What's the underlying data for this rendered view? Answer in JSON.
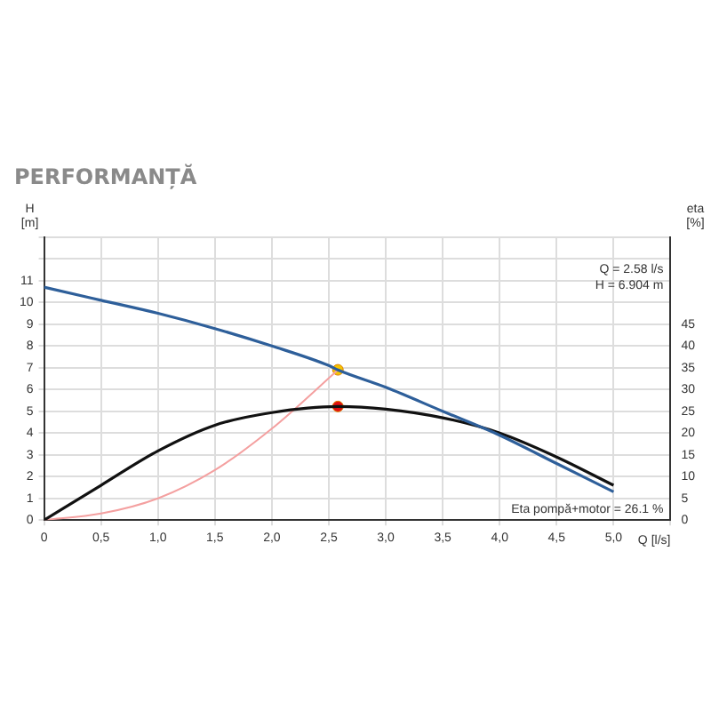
{
  "chart_data": {
    "type": "line",
    "title": "PERFORMANȚĂ",
    "xlabel": "Q [l/s]",
    "ylabel": "H [m]",
    "y2label": "eta [%]",
    "xlim": [
      0,
      5.5
    ],
    "xticks": [
      0,
      {
        "value": 0.5,
        "label": "0,5"
      },
      {
        "value": 1,
        "label": "1,0"
      },
      {
        "value": 1.5,
        "label": "1,5"
      },
      {
        "value": 2,
        "label": "2,0"
      },
      {
        "value": 2.5,
        "label": "2,5"
      },
      {
        "value": 3,
        "label": "3,0"
      },
      {
        "value": 3.5,
        "label": "3,5"
      },
      {
        "value": 4,
        "label": "4,0"
      },
      {
        "value": 4.5,
        "label": "4,5"
      },
      {
        "value": 5,
        "label": "5,0"
      },
      {
        "value": 5.5,
        "label": null
      }
    ],
    "ylim": [
      0,
      13
    ],
    "yticks": [
      0,
      1,
      2,
      3,
      4,
      5,
      6,
      7,
      8,
      9,
      10,
      11,
      {
        "value": 12,
        "label": null
      },
      {
        "value": 13,
        "label": null
      }
    ],
    "y2lim": [
      0,
      65
    ],
    "y2ticks": [
      0,
      5,
      10,
      15,
      20,
      25,
      30,
      35,
      40,
      45
    ],
    "grid": true,
    "series": [
      {
        "color": "#2e5f9a",
        "x": [
          0,
          0.5,
          1,
          1.5,
          2,
          2.5,
          2.58,
          3,
          3.5,
          4,
          4.5,
          5
        ],
        "values": [
          10.7,
          10.1,
          9.5,
          8.8,
          8.0,
          7.1,
          6.9,
          6.1,
          5.0,
          3.9,
          2.6,
          1.3
        ]
      },
      {
        "color": "#111111",
        "axis": "y2",
        "x": [
          0,
          0.5,
          1,
          1.5,
          2,
          2.58,
          3,
          3.5,
          4,
          4.5,
          5
        ],
        "values": [
          0,
          8,
          15.9,
          21.8,
          24.7,
          26.1,
          25.5,
          23.5,
          20,
          14.5,
          8
        ]
      },
      {
        "color": "#f4a0a0",
        "x": [
          0,
          0.5,
          1,
          1.5,
          2,
          2.58
        ],
        "values": [
          0,
          0.3,
          1.0,
          2.3,
          4.2,
          6.9
        ]
      },
      {
        "type": "scatter",
        "marker": "circle",
        "color": "#f5c400",
        "x": [
          2.58
        ],
        "values": [
          6.904
        ]
      },
      {
        "type": "scatter",
        "marker": "circle",
        "color": "#e01010",
        "axis": "y2",
        "x": [
          2.58
        ],
        "values": [
          26.1
        ]
      }
    ],
    "annotations": [
      "Q = 2.58 l/s",
      "H = 6.904 m",
      "Eta pompă+motor = 26.1 %"
    ]
  }
}
